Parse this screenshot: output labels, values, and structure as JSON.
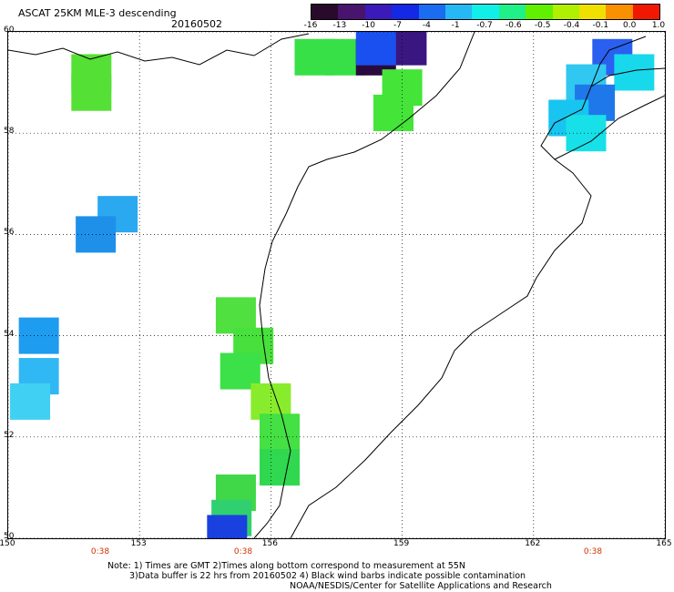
{
  "header": {
    "title": "ASCAT 25KM MLE-3 descending",
    "date": "20160502"
  },
  "colorbar": {
    "labels": [
      "-16",
      "-13",
      "-10",
      "-7",
      "-4",
      "-1",
      "-0.7",
      "-0.6",
      "-0.5",
      "-0.4",
      "-0.1",
      "0.0",
      "1.0"
    ],
    "colors": [
      "#2a0a2a",
      "#48146e",
      "#3a1ab8",
      "#1428e6",
      "#1a6cf0",
      "#26b8f4",
      "#10f0e8",
      "#20f088",
      "#60f000",
      "#b0f000",
      "#f0e000",
      "#f89000",
      "#f01800"
    ]
  },
  "axes": {
    "lat_labels": [
      "60",
      "58",
      "56",
      "54",
      "52",
      "50"
    ],
    "lon_labels": [
      "150",
      "153",
      "156",
      "159",
      "162",
      "165"
    ],
    "time_labels": [
      "0:38",
      "0:38",
      "0:38"
    ]
  },
  "map_data": {
    "lat_range": [
      50,
      60
    ],
    "lon_range": [
      150,
      165
    ],
    "patches": [
      {
        "lon": 157.0,
        "lat": 59.5,
        "color": "#38e048"
      },
      {
        "lon": 157.7,
        "lat": 59.5,
        "color": "#38e048"
      },
      {
        "lon": 158.4,
        "lat": 59.5,
        "color": "#2a0a3e"
      },
      {
        "lon": 159.1,
        "lat": 59.7,
        "color": "#3a1680"
      },
      {
        "lon": 158.4,
        "lat": 59.7,
        "color": "#1a50f0"
      },
      {
        "lon": 159.0,
        "lat": 58.9,
        "color": "#44e438"
      },
      {
        "lon": 158.8,
        "lat": 58.4,
        "color": "#44e438"
      },
      {
        "lon": 151.9,
        "lat": 59.2,
        "color": "#54e034"
      },
      {
        "lon": 151.9,
        "lat": 58.8,
        "color": "#54e034"
      },
      {
        "lon": 152.5,
        "lat": 56.4,
        "color": "#2aa8f0"
      },
      {
        "lon": 152.0,
        "lat": 56.0,
        "color": "#1e90ea"
      },
      {
        "lon": 150.7,
        "lat": 54.0,
        "color": "#1e9cf0"
      },
      {
        "lon": 150.7,
        "lat": 53.2,
        "color": "#30b8f4"
      },
      {
        "lon": 150.5,
        "lat": 52.7,
        "color": "#40d0f4"
      },
      {
        "lon": 155.2,
        "lat": 54.4,
        "color": "#50e040"
      },
      {
        "lon": 155.6,
        "lat": 53.8,
        "color": "#48e03c"
      },
      {
        "lon": 155.3,
        "lat": 53.3,
        "color": "#3ce048"
      },
      {
        "lon": 156.0,
        "lat": 52.7,
        "color": "#88ec2c"
      },
      {
        "lon": 156.2,
        "lat": 52.1,
        "color": "#44e044"
      },
      {
        "lon": 156.2,
        "lat": 51.4,
        "color": "#30d850"
      },
      {
        "lon": 155.2,
        "lat": 50.9,
        "color": "#40d848"
      },
      {
        "lon": 155.1,
        "lat": 50.4,
        "color": "#30d070"
      },
      {
        "lon": 155.0,
        "lat": 50.1,
        "color": "#1a40e0"
      },
      {
        "lon": 163.8,
        "lat": 59.5,
        "color": "#2a60f0"
      },
      {
        "lon": 164.3,
        "lat": 59.2,
        "color": "#18d8ec"
      },
      {
        "lon": 163.2,
        "lat": 59.0,
        "color": "#30c8f0"
      },
      {
        "lon": 163.4,
        "lat": 58.6,
        "color": "#1e78ea"
      },
      {
        "lon": 162.8,
        "lat": 58.3,
        "color": "#18c4f0"
      },
      {
        "lon": 163.2,
        "lat": 58.0,
        "color": "#18e0e8"
      }
    ]
  },
  "notes": {
    "line1": "Note: 1) Times are GMT 2)Times along bottom correspond to measurement at 55N",
    "line2": "3)Data buffer is 22 hrs from 20160502 4) Black wind barbs indicate possible contamination",
    "line3": "NOAA/NESDIS/Center for Satellite Applications and Research"
  }
}
